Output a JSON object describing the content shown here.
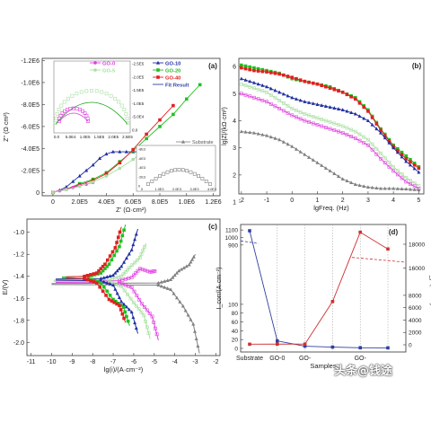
{
  "watermark": "头条@钱途",
  "chart_data": [
    {
      "panel_label": "(a)",
      "type": "scatter",
      "xlabel": "Z' (Ω·cm²)",
      "ylabel": "Z'' (Ω·cm²)",
      "x_ticks": [
        "0",
        "2.0E5",
        "4.0E5",
        "6.0E5",
        "8.0E5",
        "1.0E6",
        "1.2E6"
      ],
      "y_ticks": [
        "0",
        "-2.0E5",
        "-4.0E5",
        "-6.0E5",
        "-8.0E5",
        "-1.0E6",
        "-1.2E6"
      ],
      "xlim": [
        -80000,
        1250000
      ],
      "ylim": [
        30000,
        -1220000
      ],
      "colors": {
        "GO-0": "#e040e0",
        "GO-5": "#a8e0a0",
        "GO-10": "#2030a0",
        "GO-20": "#20c020",
        "GO-40": "#e02020",
        "Fit Result": "#3040a0",
        "Substrate": "#808080"
      },
      "legend": [
        "GO-0",
        "GO-5",
        "GO-10",
        "GO-20",
        "GO-40",
        "Fit Result",
        "Substrate"
      ],
      "series": [
        {
          "name": "GO-10",
          "x": [
            0,
            50000,
            100000,
            150000,
            200000,
            250000,
            300000,
            350000,
            400000,
            450000,
            500000,
            550000,
            600000,
            650000,
            700000
          ],
          "y": [
            0,
            -20000,
            -50000,
            -100000,
            -150000,
            -200000,
            -250000,
            -310000,
            -350000,
            -370000,
            -370000,
            -370000,
            -370000,
            -370000,
            -370000
          ]
        },
        {
          "name": "GO-20",
          "x": [
            0,
            100000,
            200000,
            300000,
            400000,
            500000,
            600000,
            700000,
            800000,
            900000,
            1000000,
            1100000
          ],
          "y": [
            0,
            -30000,
            -80000,
            -120000,
            -180000,
            -280000,
            -380000,
            -490000,
            -600000,
            -710000,
            -850000,
            -980000
          ]
        },
        {
          "name": "GO-40",
          "x": [
            0,
            100000,
            200000,
            300000,
            400000,
            500000,
            600000,
            700000,
            800000,
            900000
          ],
          "y": [
            0,
            -30000,
            -70000,
            -110000,
            -170000,
            -270000,
            -390000,
            -530000,
            -660000,
            -790000
          ]
        },
        {
          "name": "GO-0",
          "x": [
            0,
            50000,
            100000,
            150000,
            200000,
            250000,
            300000
          ],
          "y": [
            0,
            -15000,
            -30000,
            -45000,
            -60000,
            -75000,
            -90000
          ]
        },
        {
          "name": "GO-5",
          "x": [
            0,
            100000,
            200000,
            300000,
            400000,
            500000,
            600000,
            700000
          ],
          "y": [
            0,
            -25000,
            -55000,
            -95000,
            -150000,
            -220000,
            -300000,
            -390000
          ]
        }
      ],
      "insets": [
        {
          "x_ticks": [
            "0.0",
            "5.0E4",
            "1.0E5",
            "1.5E5",
            "2.0E5",
            "2.5E5"
          ],
          "y_ticks": [
            "-2.5E5",
            "-2.0E5",
            "-1.5E5",
            "-1.0E5",
            "-5.0E4",
            "0.0"
          ]
        },
        {
          "x_ticks": [
            "0",
            "1.0E3",
            "2.0E3",
            "3.0E3",
            "4.0E3"
          ],
          "y_ticks": [
            "-8E3",
            "-6E3",
            "-4E3",
            "-2E3",
            "0"
          ]
        }
      ]
    },
    {
      "panel_label": "(b)",
      "type": "line",
      "xlabel": "lgFreq. (Hz)",
      "ylabel": "lg|Z|/(kΩ·cm²)",
      "x_ticks": [
        "-2",
        "-1",
        "0",
        "1",
        "2",
        "3",
        "4",
        "5"
      ],
      "y_ticks": [
        "1",
        "2",
        "3",
        "4",
        "5",
        "6"
      ],
      "xlim": [
        -2.1,
        5.2
      ],
      "ylim": [
        1.3,
        6.3
      ],
      "series": [
        {
          "name": "GO-20",
          "color": "#20c020",
          "x": [
            -2,
            -1.5,
            -1,
            -0.5,
            0,
            0.5,
            1,
            1.5,
            2,
            2.5,
            3,
            3.5,
            4,
            4.5,
            5
          ],
          "y": [
            6.05,
            5.95,
            5.85,
            5.75,
            5.55,
            5.45,
            5.35,
            5.25,
            5.05,
            4.85,
            4.4,
            3.7,
            3.1,
            2.7,
            2.3
          ]
        },
        {
          "name": "GO-40",
          "color": "#e02020",
          "x": [
            -2,
            -1.5,
            -1,
            -0.5,
            0,
            0.5,
            1,
            1.5,
            2,
            2.5,
            3,
            3.5,
            4,
            4.5,
            5
          ],
          "y": [
            5.95,
            5.85,
            5.8,
            5.72,
            5.6,
            5.45,
            5.35,
            5.2,
            5.05,
            4.8,
            4.35,
            3.65,
            3.05,
            2.6,
            2.25
          ]
        },
        {
          "name": "GO-10",
          "color": "#2030a0",
          "x": [
            -2,
            -1.5,
            -1,
            -0.5,
            0,
            0.5,
            1,
            1.5,
            2,
            2.5,
            3,
            3.5,
            4,
            4.5,
            5
          ],
          "y": [
            5.55,
            5.4,
            5.25,
            5.05,
            4.85,
            4.7,
            4.6,
            4.5,
            4.4,
            4.25,
            4.0,
            3.55,
            3.0,
            2.5,
            2.1
          ]
        },
        {
          "name": "GO-5",
          "color": "#a8e0a0",
          "x": [
            -2,
            -1.5,
            -1,
            -0.5,
            0,
            0.5,
            1,
            1.5,
            2,
            2.5,
            3,
            3.5,
            4,
            4.5,
            5
          ],
          "y": [
            5.35,
            5.2,
            5.05,
            4.75,
            4.45,
            4.25,
            4.1,
            3.95,
            3.8,
            3.6,
            3.3,
            2.8,
            2.3,
            1.9,
            1.6
          ]
        },
        {
          "name": "GO-0",
          "color": "#e040e0",
          "x": [
            -2,
            -1.5,
            -1,
            -0.5,
            0,
            0.5,
            1,
            1.5,
            2,
            2.5,
            3,
            3.5,
            4,
            4.5,
            5
          ],
          "y": [
            5.0,
            4.85,
            4.7,
            4.45,
            4.2,
            4.0,
            3.85,
            3.7,
            3.55,
            3.35,
            3.1,
            2.6,
            2.15,
            1.75,
            1.5
          ]
        },
        {
          "name": "Substrate",
          "color": "#808080",
          "x": [
            -2,
            -1.5,
            -1,
            -0.5,
            0,
            0.5,
            1,
            1.5,
            2,
            2.5,
            3,
            3.5,
            4,
            4.5,
            5
          ],
          "y": [
            3.6,
            3.55,
            3.45,
            3.3,
            3.05,
            2.75,
            2.45,
            2.15,
            1.85,
            1.65,
            1.55,
            1.5,
            1.5,
            1.48,
            1.45
          ]
        }
      ]
    },
    {
      "panel_label": "(c)",
      "type": "line",
      "xlabel": "lg(i)/(A·cm⁻²)",
      "ylabel": "E/(V)",
      "x_ticks": [
        "-11",
        "-10",
        "-9",
        "-8",
        "-7",
        "-6",
        "-5",
        "-4",
        "-3",
        "-2"
      ],
      "y_ticks": [
        "-1.0",
        "-1.2",
        "-1.4",
        "-1.6",
        "-1.8",
        "-2.0"
      ],
      "xlim": [
        -11.2,
        -1.8
      ],
      "ylim": [
        -2.12,
        -0.88
      ],
      "series": [
        {
          "name": "Substrate",
          "color": "#808080",
          "Ecorr": -1.47,
          "floor": -10.0,
          "anodic_end": [
            -3.0,
            -1.2
          ],
          "cathodic_end": [
            -2.8,
            -2.1
          ]
        },
        {
          "name": "GO-0",
          "color": "#e040e0",
          "Ecorr": -1.45,
          "floor": -9.8,
          "anodic_end": [
            -4.9,
            -1.35
          ],
          "cathodic_end": [
            -4.8,
            -1.98
          ]
        },
        {
          "name": "GO-5",
          "color": "#a8e0a0",
          "Ecorr": -1.44,
          "floor": -9.9,
          "anodic_end": [
            -5.4,
            -1.1
          ],
          "cathodic_end": [
            -5.2,
            -1.97
          ]
        },
        {
          "name": "GO-10",
          "color": "#2030a0",
          "Ecorr": -1.43,
          "floor": -9.8,
          "anodic_end": [
            -5.8,
            -0.97
          ],
          "cathodic_end": [
            -5.8,
            -1.92
          ]
        },
        {
          "name": "GO-20",
          "color": "#20c020",
          "Ecorr": -1.41,
          "floor": -9.5,
          "anodic_end": [
            -6.4,
            -0.93
          ],
          "cathodic_end": [
            -6.2,
            -1.85
          ]
        },
        {
          "name": "GO-40",
          "color": "#e02020",
          "Ecorr": -1.41,
          "floor": -9.3,
          "anodic_end": [
            -6.6,
            -0.95
          ],
          "cathodic_end": [
            -6.4,
            -1.82
          ]
        }
      ]
    },
    {
      "panel_label": "(d)",
      "type": "line",
      "xlabel": "Samples",
      "ylabel_left": "I_corr/(A·cm⁻²)",
      "ylabel_right": "R_p/(Ω·cm²)",
      "categories": [
        "Substrate",
        "GO-0",
        "GO-5",
        "GO-10",
        "GO-20",
        "GO-40"
      ],
      "category_tick_labels": [
        "Substrate",
        "GO-0",
        "GO-",
        "",
        "GO-",
        ""
      ],
      "left_ticks": [
        "0",
        "20",
        "40",
        "60",
        "80",
        "100",
        "900",
        "1000",
        "1100"
      ],
      "right_ticks": [
        "0",
        "2000",
        "4000",
        "6000",
        "8000",
        "16000",
        "18000"
      ],
      "series": [
        {
          "name": "Icorr",
          "color": "#3040a0",
          "values": [
            1090,
            17,
            5,
            3,
            1.5,
            1.2
          ]
        },
        {
          "name": "Rp",
          "color": "#d03030",
          "values": [
            95,
            110,
            115,
            7000,
            19000,
            17600
          ]
        }
      ]
    }
  ]
}
